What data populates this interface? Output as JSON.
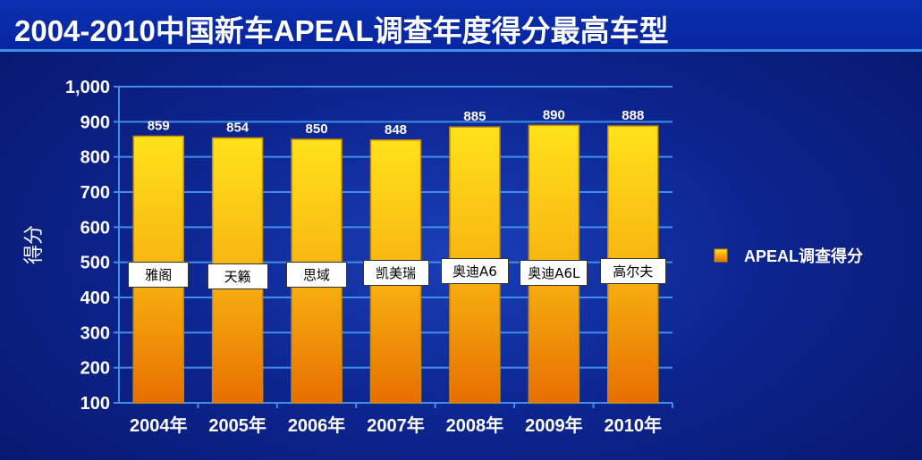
{
  "title": "2004-2010中国新车APEAL调查年度得分最高车型",
  "chart_data": {
    "type": "bar",
    "title": "2004-2010中国新车APEAL调查年度得分最高车型",
    "categories": [
      "2004年",
      "2005年",
      "2006年",
      "2007年",
      "2008年",
      "2009年",
      "2010年"
    ],
    "series": [
      {
        "name": "APEAL调查得分",
        "values": [
          859,
          854,
          850,
          848,
          885,
          890,
          888
        ]
      }
    ],
    "car_models": [
      "雅阁",
      "天籁",
      "思域",
      "凯美瑞",
      "奥迪A6",
      "奥迪A6L",
      "高尔夫"
    ],
    "ylabel": "得分",
    "xlabel": "",
    "ylim": [
      100,
      1000
    ],
    "yticks": [
      "100",
      "200",
      "300",
      "400",
      "500",
      "600",
      "700",
      "800",
      "900",
      "1,000"
    ],
    "grid": true,
    "legend_position": "right",
    "colors": {
      "bar_top": "#ffe21a",
      "bar_bottom": "#e86e00",
      "bar_border": "#c98a00",
      "grid": "#3f8ee8",
      "axis_text": "#ffffff"
    }
  }
}
